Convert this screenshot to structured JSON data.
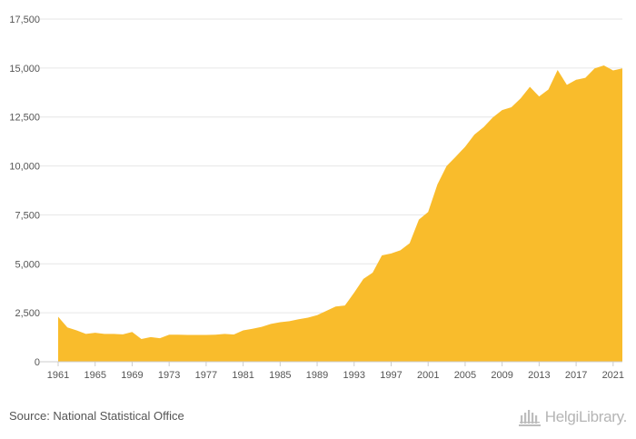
{
  "chart_data": {
    "type": "area",
    "x": [
      1961,
      1962,
      1963,
      1964,
      1965,
      1966,
      1967,
      1968,
      1969,
      1970,
      1971,
      1972,
      1973,
      1974,
      1975,
      1976,
      1977,
      1978,
      1979,
      1980,
      1981,
      1982,
      1983,
      1984,
      1985,
      1986,
      1987,
      1988,
      1989,
      1990,
      1991,
      1992,
      1993,
      1994,
      1995,
      1996,
      1997,
      1998,
      1999,
      2000,
      2001,
      2002,
      2003,
      2004,
      2005,
      2006,
      2007,
      2008,
      2009,
      2010,
      2011,
      2012,
      2013,
      2014,
      2015,
      2016,
      2017,
      2018,
      2019,
      2020,
      2021,
      2022
    ],
    "series": [
      {
        "values": [
          2300,
          1750,
          1600,
          1420,
          1480,
          1420,
          1420,
          1400,
          1520,
          1160,
          1260,
          1200,
          1380,
          1380,
          1370,
          1370,
          1370,
          1380,
          1420,
          1390,
          1600,
          1680,
          1780,
          1930,
          2020,
          2070,
          2170,
          2250,
          2380,
          2600,
          2820,
          2870,
          3530,
          4230,
          4550,
          5430,
          5530,
          5690,
          6050,
          7260,
          7650,
          9050,
          10000,
          10480,
          10980,
          11600,
          11980,
          12480,
          12850,
          13000,
          13450,
          14040,
          13550,
          13900,
          14900,
          14140,
          14400,
          14500,
          14980,
          15130,
          14880,
          14980
        ],
        "color": "#f9bc2c"
      }
    ],
    "x_ticks": [
      "1961",
      "1965",
      "1969",
      "1973",
      "1977",
      "1981",
      "1985",
      "1989",
      "1993",
      "1997",
      "2001",
      "2005",
      "2009",
      "2013",
      "2017",
      "2021"
    ],
    "y_ticks": [
      "0",
      "2,500",
      "5,000",
      "7,500",
      "10,000",
      "12,500",
      "15,000",
      "17,500"
    ],
    "ylim": [
      0,
      17500
    ],
    "xlim": [
      1961,
      2022
    ],
    "grid": "horizontal",
    "legend": "none"
  },
  "footer": {
    "source": "Source: National Statistical Office",
    "logo_text": "HelgiLibrary."
  }
}
